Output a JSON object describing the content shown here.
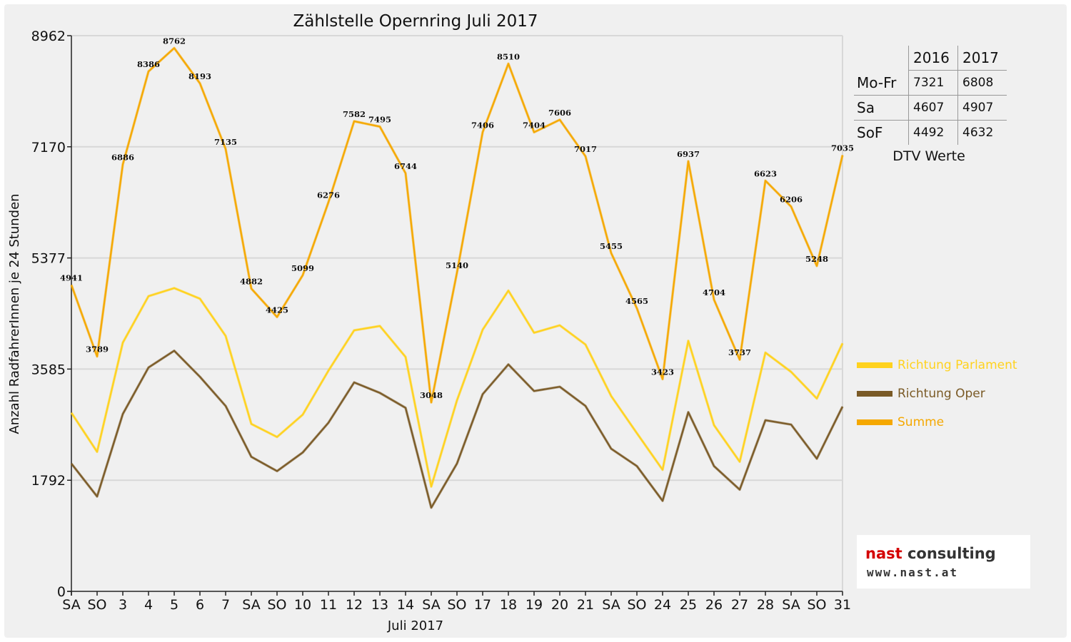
{
  "chart_data": {
    "type": "line",
    "title": "Zählstelle Opernring Juli 2017",
    "xlabel": "Juli 2017",
    "ylabel": "Anzahl RadfahrerInnen je 24 Stunden",
    "ylim": [
      0,
      8962
    ],
    "yticks": [
      0,
      1792,
      3585,
      5377,
      7170,
      8962
    ],
    "grid": true,
    "legend_position": "right",
    "categories": [
      "SA",
      "SO",
      "3",
      "4",
      "5",
      "6",
      "7",
      "SA",
      "SO",
      "10",
      "11",
      "12",
      "13",
      "14",
      "SA",
      "SO",
      "17",
      "18",
      "19",
      "20",
      "21",
      "SA",
      "SO",
      "24",
      "25",
      "26",
      "27",
      "28",
      "SA",
      "SO",
      "31"
    ],
    "weekend_categories": [
      "SO"
    ],
    "weekend_color": "#e00000",
    "series": [
      {
        "name": "Richtung Parlament",
        "color": "#ffd21e",
        "values": [
          2880,
          2250,
          4010,
          4760,
          4890,
          4720,
          4120,
          2700,
          2490,
          2850,
          3560,
          4210,
          4280,
          3780,
          1690,
          3080,
          4220,
          4850,
          4170,
          4290,
          3980,
          3150,
          2550,
          1960,
          4040,
          2680,
          2090,
          3850,
          3540,
          3110,
          4000
        ]
      },
      {
        "name": "Richtung Oper",
        "color": "#7a5a26",
        "values": [
          2060,
          1530,
          2860,
          3610,
          3880,
          3460,
          2990,
          2170,
          1940,
          2240,
          2720,
          3370,
          3200,
          2960,
          1350,
          2060,
          3180,
          3660,
          3230,
          3300,
          2990,
          2300,
          2020,
          1460,
          2890,
          2020,
          1640,
          2760,
          2690,
          2140,
          2980
        ]
      },
      {
        "name": "Summe",
        "color": "#f5a800",
        "values": [
          4941,
          3789,
          6886,
          8386,
          8762,
          8193,
          7135,
          4882,
          4425,
          5099,
          6276,
          7582,
          7495,
          6744,
          3048,
          5140,
          7406,
          8510,
          7404,
          7606,
          7017,
          5455,
          4565,
          3423,
          6937,
          4704,
          3737,
          6623,
          6206,
          5248,
          7035
        ],
        "data_labels": true
      }
    ]
  },
  "dtv_table": {
    "columns": [
      "2016",
      "2017"
    ],
    "rows": [
      {
        "label": "Mo-Fr",
        "values": [
          "7321",
          "6808"
        ]
      },
      {
        "label": "Sa",
        "values": [
          "4607",
          "4907"
        ]
      },
      {
        "label": "SoF",
        "values": [
          "4492",
          "4632"
        ]
      }
    ],
    "caption": "DTV Werte"
  },
  "logo": {
    "name_part1": "nast",
    "name_part2": "consulting",
    "url": "www.nast.at",
    "name_part1_color": "#d40000",
    "name_part2_color": "#333333"
  }
}
